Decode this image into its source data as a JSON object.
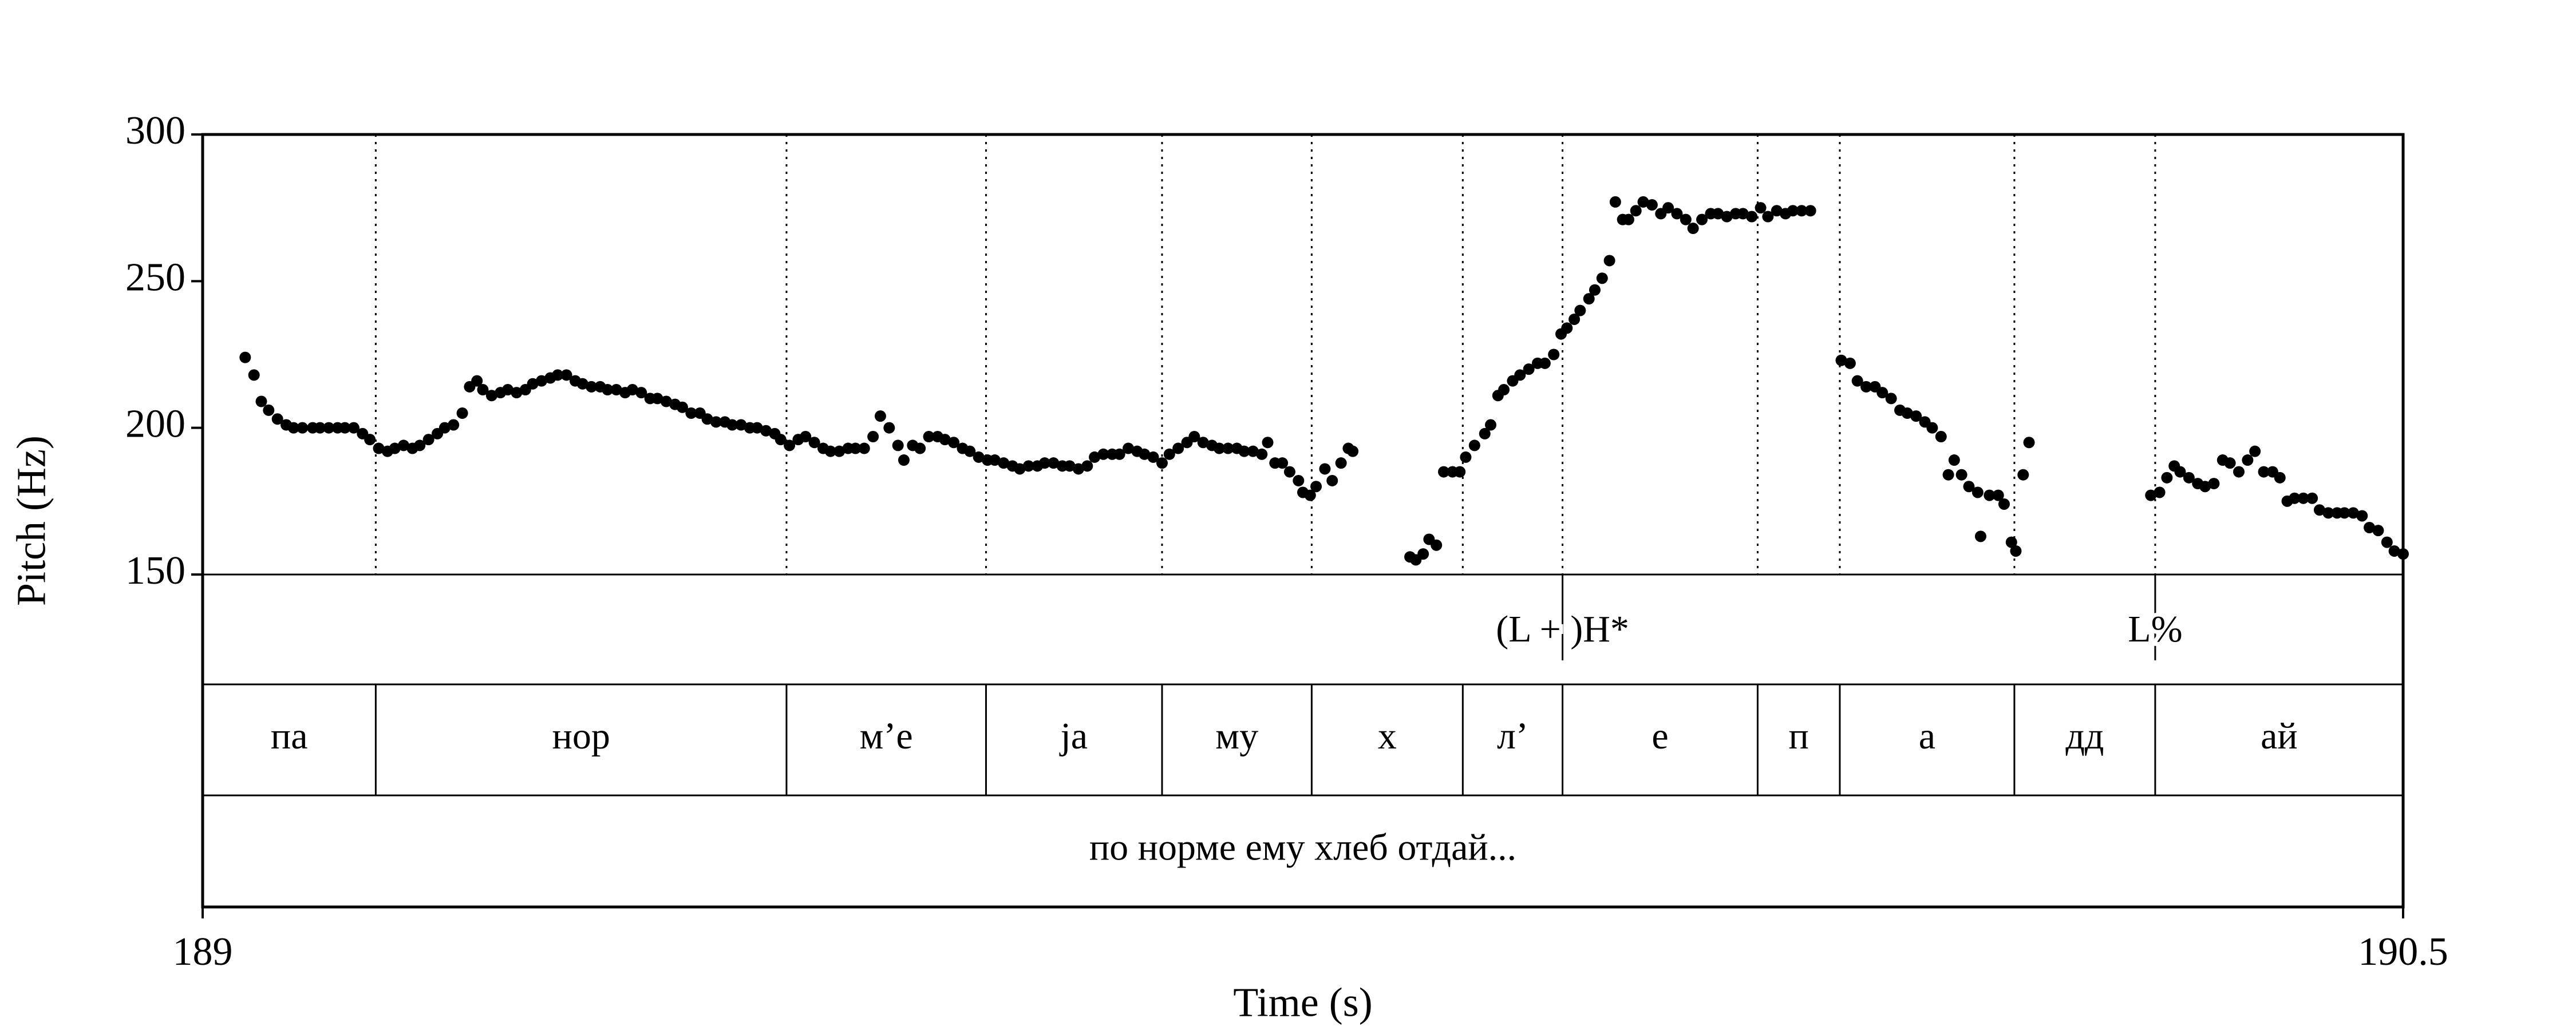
{
  "chart_data": {
    "type": "scatter",
    "xlabel": "Time (s)",
    "ylabel": "Pitch (Hz)",
    "xlim": [
      189,
      190.5
    ],
    "xticks": [
      189,
      190.5
    ],
    "ylim": [
      150,
      300
    ],
    "yticks": [
      150,
      200,
      250,
      300
    ],
    "color": "#000000",
    "x": [
      189.029,
      189.035,
      189.04,
      189.045,
      189.051,
      189.057,
      189.062,
      189.068,
      189.075,
      189.08,
      189.086,
      189.092,
      189.097,
      189.103,
      189.109,
      189.114,
      189.12,
      189.126,
      189.131,
      189.137,
      189.143,
      189.148,
      189.154,
      189.16,
      189.165,
      189.171,
      189.177,
      189.182,
      189.187,
      189.191,
      189.197,
      189.203,
      189.208,
      189.214,
      189.22,
      189.225,
      189.231,
      189.237,
      189.242,
      189.248,
      189.254,
      189.259,
      189.265,
      189.271,
      189.276,
      189.282,
      189.288,
      189.293,
      189.299,
      189.305,
      189.31,
      189.316,
      189.322,
      189.327,
      189.333,
      189.339,
      189.344,
      189.35,
      189.356,
      189.361,
      189.367,
      189.373,
      189.378,
      189.384,
      189.39,
      189.394,
      189.4,
      189.406,
      189.411,
      189.417,
      189.423,
      189.428,
      189.434,
      189.44,
      189.445,
      189.451,
      189.457,
      189.462,
      189.468,
      189.474,
      189.478,
      189.484,
      189.489,
      189.495,
      189.501,
      189.506,
      189.512,
      189.518,
      189.523,
      189.529,
      189.535,
      189.54,
      189.546,
      189.552,
      189.557,
      189.563,
      189.569,
      189.574,
      189.58,
      189.586,
      189.591,
      189.597,
      189.603,
      189.608,
      189.614,
      189.62,
      189.625,
      189.631,
      189.637,
      189.642,
      189.648,
      189.654,
      189.659,
      189.665,
      189.671,
      189.676,
      189.682,
      189.688,
      189.693,
      189.699,
      189.705,
      189.71,
      189.716,
      189.722,
      189.726,
      189.731,
      189.736,
      189.741,
      189.747,
      189.75,
      189.755,
      189.759,
      189.765,
      189.77,
      189.776,
      189.781,
      189.784,
      189.823,
      189.827,
      189.832,
      189.836,
      189.841,
      189.846,
      189.852,
      189.857,
      189.861,
      189.867,
      189.874,
      189.878,
      189.883,
      189.887,
      189.893,
      189.898,
      189.904,
      189.91,
      189.915,
      189.921,
      189.926,
      189.93,
      189.935,
      189.939,
      189.945,
      189.949,
      189.954,
      189.959,
      189.963,
      189.968,
      189.972,
      189.977,
      189.982,
      189.988,
      189.994,
      189.999,
      190.005,
      190.011,
      190.016,
      190.022,
      190.028,
      190.033,
      190.039,
      190.045,
      190.05,
      190.056,
      190.062,
      190.067,
      190.073,
      190.079,
      190.084,
      190.09,
      190.096,
      190.117,
      190.123,
      190.128,
      190.134,
      190.14,
      190.145,
      190.151,
      190.157,
      190.162,
      190.168,
      190.174,
      190.179,
      190.185,
      190.19,
      190.194,
      190.199,
      190.204,
      190.21,
      190.212,
      190.218,
      190.224,
      190.228,
      190.233,
      190.236,
      190.241,
      190.245,
      190.328,
      190.334,
      190.339,
      190.344,
      190.348,
      190.354,
      190.36,
      190.365,
      190.371,
      190.377,
      190.382,
      190.388,
      190.394,
      190.399,
      190.405,
      190.411,
      190.416,
      190.421,
      190.426,
      190.432,
      190.438,
      190.443,
      190.449,
      190.455,
      190.46,
      190.466,
      190.472,
      190.477,
      190.483,
      190.489,
      190.494,
      190.5
    ],
    "values": [
      224,
      218,
      209,
      206,
      203,
      201,
      200,
      200,
      200,
      200,
      200,
      200,
      200,
      200,
      198,
      196,
      193,
      192,
      193,
      194,
      193,
      194,
      196,
      198,
      200,
      201,
      205,
      214,
      216,
      213,
      211,
      212,
      213,
      212,
      213,
      215,
      216,
      217,
      218,
      218,
      216,
      215,
      214,
      214,
      213,
      213,
      212,
      213,
      212,
      210,
      210,
      209,
      208,
      207,
      205,
      205,
      203,
      202,
      202,
      201,
      201,
      200,
      200,
      199,
      198,
      196,
      194,
      196,
      197,
      195,
      193,
      192,
      192,
      193,
      193,
      193,
      197,
      204,
      200,
      194,
      189,
      194,
      193,
      197,
      197,
      196,
      195,
      193,
      192,
      190,
      189,
      189,
      188,
      187,
      186,
      187,
      187,
      188,
      188,
      187,
      187,
      186,
      187,
      190,
      191,
      191,
      191,
      193,
      192,
      191,
      190,
      188,
      191,
      193,
      195,
      197,
      195,
      194,
      193,
      193,
      193,
      192,
      192,
      191,
      195,
      188,
      188,
      185,
      182,
      178,
      177,
      180,
      186,
      182,
      188,
      193,
      192,
      156,
      155,
      157,
      162,
      160,
      185,
      185,
      185,
      190,
      194,
      198,
      201,
      211,
      213,
      216,
      218,
      220,
      222,
      222,
      225,
      232,
      234,
      237,
      240,
      244,
      247,
      251,
      257,
      277,
      271,
      271,
      274,
      277,
      276,
      273,
      275,
      273,
      271,
      268,
      271,
      273,
      273,
      272,
      273,
      273,
      272,
      275,
      272,
      274,
      273,
      274,
      274,
      274,
      223,
      222,
      216,
      214,
      214,
      212,
      210,
      206,
      205,
      204,
      202,
      200,
      197,
      184,
      189,
      184,
      180,
      178,
      163,
      177,
      177,
      174,
      161,
      158,
      184,
      195,
      177,
      178,
      183,
      187,
      185,
      183,
      181,
      180,
      181,
      189,
      188,
      185,
      189,
      192,
      185,
      185,
      183,
      175,
      176,
      176,
      176,
      172,
      171,
      171,
      171,
      171,
      170,
      166,
      165,
      161,
      158,
      157
    ],
    "tone_tier": [
      {
        "time": 189.927,
        "label": "(L + )H*"
      },
      {
        "time": 190.331,
        "label": "L%"
      }
    ],
    "syllable_tier": {
      "boundaries": [
        189,
        189.118,
        189.398,
        189.534,
        189.654,
        189.756,
        189.859,
        189.927,
        190.06,
        190.116,
        190.235,
        190.331,
        190.5
      ],
      "labels": [
        "па",
        "нор",
        "м’е",
        "ја",
        "му",
        "х",
        "л’",
        "е",
        "п",
        "а",
        "дд",
        "ай"
      ]
    },
    "sentence_tier": {
      "boundaries": [
        189,
        190.5
      ],
      "labels": [
        "по норме ему хлеб отдай..."
      ]
    }
  }
}
